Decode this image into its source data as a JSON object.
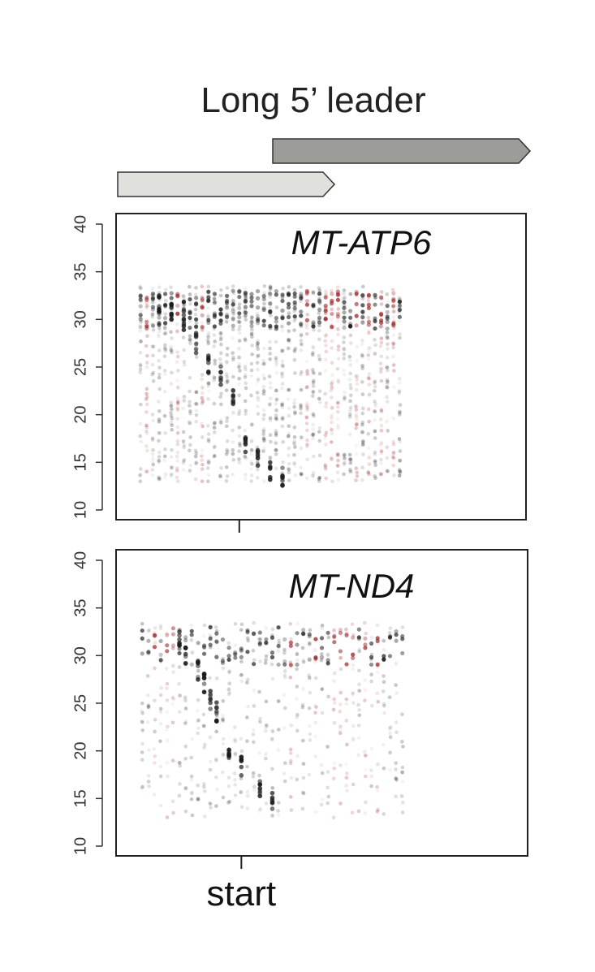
{
  "title": "Long 5’ leader",
  "colors": {
    "upstream_orf": "#e0e0dc",
    "main_orf": "#9c9c98",
    "dot_black": "#1a1a1a",
    "dot_red": "#9a1f22",
    "axis": "#222222"
  },
  "orf_arrows": [
    {
      "name": "upstream-orf",
      "start": -18,
      "end": 6
    },
    {
      "name": "main-orf",
      "start": -1,
      "end": 27
    }
  ],
  "chart_data": [
    {
      "type": "scatter",
      "gene": "MT-ATP6",
      "x_tick_label": "",
      "xlim": [
        -18,
        27
      ],
      "xstart": 0,
      "ylim": [
        10,
        40
      ],
      "yticks": [
        10,
        15,
        20,
        25,
        30,
        35,
        40
      ],
      "band": [
        {
          "x": -13,
          "y": 31.5
        },
        {
          "x": -11,
          "y": 31
        },
        {
          "x": -9,
          "y": 30
        },
        {
          "x": -7,
          "y": 27.5
        },
        {
          "x": -5,
          "y": 25.5
        },
        {
          "x": -3,
          "y": 24
        },
        {
          "x": -1,
          "y": 22
        },
        {
          "x": 1,
          "y": 17
        },
        {
          "x": 3,
          "y": 15.5
        },
        {
          "x": 5,
          "y": 14
        },
        {
          "x": 7,
          "y": 13.5
        }
      ],
      "red_columns": [
        -15,
        -10,
        -6,
        11,
        14,
        15,
        16,
        19,
        21,
        23,
        25
      ]
    },
    {
      "type": "scatter",
      "gene": "MT-ND4",
      "x_tick_label": "start",
      "xlim": [
        -18,
        27
      ],
      "xstart": 0,
      "ylim": [
        10,
        40
      ],
      "yticks": [
        10,
        15,
        20,
        25,
        30,
        35,
        40
      ],
      "band": [
        {
          "x": -10,
          "y": 31.5
        },
        {
          "x": -9,
          "y": 30
        },
        {
          "x": -7,
          "y": 28.5
        },
        {
          "x": -6,
          "y": 27
        },
        {
          "x": -5,
          "y": 25.5
        },
        {
          "x": -4,
          "y": 24
        },
        {
          "x": -2,
          "y": 20
        },
        {
          "x": 0,
          "y": 18.5
        },
        {
          "x": 3,
          "y": 16
        },
        {
          "x": 5,
          "y": 14.5
        }
      ],
      "red_columns": [
        -14,
        -12,
        -11,
        8,
        12,
        15,
        16,
        17,
        18,
        20,
        22
      ]
    }
  ]
}
